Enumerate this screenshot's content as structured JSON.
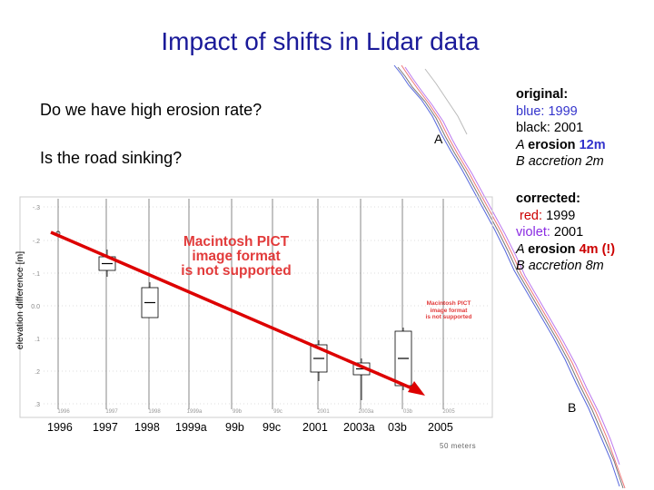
{
  "title": "Impact of shifts in Lidar data",
  "questions": [
    "Do we have high erosion rate?",
    "Is the road sinking?"
  ],
  "original": {
    "heading": "original:",
    "line1_color": "blue:",
    "line1_year": "1999",
    "line2_color": "black:",
    "line2_year": "2001",
    "a_prefix": "A ",
    "a_bold": "erosion ",
    "a_value": "12m",
    "b_text": "B accretion 2m"
  },
  "corrected": {
    "heading": "corrected:",
    "line1_color": "red:",
    "line1_year": "1999",
    "line2_color": "violet:",
    "line2_year": "2001",
    "a_prefix": "A ",
    "a_bold": "erosion ",
    "a_value": "4m (!)",
    "b_text": "B accretion 8m"
  },
  "placeholder_large": [
    "Macintosh PICT",
    "image format",
    "is not supported"
  ],
  "placeholder_small": [
    "Macintosh PICT",
    "image format",
    "is not supported"
  ],
  "map_marks": {
    "a": "A",
    "b": "B",
    "scale": "50 meters"
  },
  "colors": {
    "title": "#1a1a99",
    "trend": "#dd0000",
    "placeholder": "#e23b3b"
  },
  "chart_data": {
    "type": "box",
    "title": "",
    "ylabel": "elevation difference [m]",
    "categories": [
      "1996",
      "1997",
      "1998",
      "1999a",
      "99b",
      "99c",
      "2001",
      "2003a",
      "03b",
      "2005"
    ],
    "ytick_labels": [
      "-.3",
      "-.2",
      "-.1",
      "0.0",
      ".1",
      ".2",
      ".3"
    ],
    "trend": {
      "x_from": "1996",
      "x_to": "2005",
      "direction": "decreasing"
    }
  }
}
